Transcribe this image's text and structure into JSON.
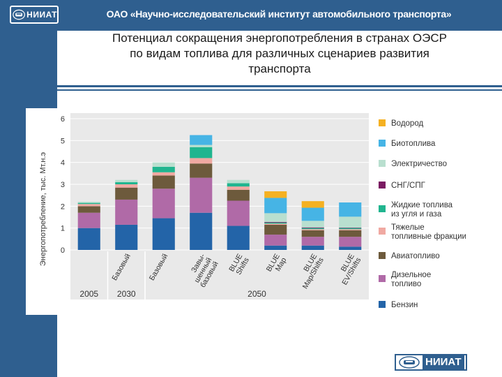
{
  "header": {
    "org_name": "ОАО «Научно-исследовательский институт автомобильного транспорта»",
    "logo_text": "НИИАТ"
  },
  "slide": {
    "title_line1": "Потенциал сокращения энергопотребления в странах ОЭСР",
    "title_line2": "по видам топлива для различных сценариев развития",
    "title_line3": "транспорта"
  },
  "footer": {
    "logo_text": "НИИАТ"
  },
  "chart_data": {
    "type": "bar",
    "stacked": true,
    "ylabel": "Энергопотребление, тыс. Мт.н.э",
    "ylim": [
      0,
      6
    ],
    "yticks": [
      0,
      1,
      2,
      3,
      4,
      5,
      6
    ],
    "grid": true,
    "legend_position": "right",
    "categories": [
      {
        "label": "",
        "group": "2005"
      },
      {
        "label": "Базовый",
        "group": "2030"
      },
      {
        "label": "Базовый",
        "group": "2050"
      },
      {
        "label": "Завы-шенный базовый",
        "group": "2050"
      },
      {
        "label": "BLUE Shifts",
        "group": "2050"
      },
      {
        "label": "BLUE Map",
        "group": "2050"
      },
      {
        "label": "BLUE Map/Shifts",
        "group": "2050"
      },
      {
        "label": "BLUE EV/Shifts",
        "group": "2050"
      }
    ],
    "groups": [
      {
        "label": "2005",
        "from": 0,
        "to": 0
      },
      {
        "label": "2030",
        "from": 1,
        "to": 1
      },
      {
        "label": "2050",
        "from": 2,
        "to": 7
      }
    ],
    "series": [
      {
        "name": "Бензин",
        "color": "#2364a8",
        "values": [
          1.0,
          1.15,
          1.45,
          1.7,
          1.1,
          0.2,
          0.2,
          0.15
        ]
      },
      {
        "name": "Дизельное топливо",
        "color": "#b06aa7",
        "values": [
          0.7,
          1.15,
          1.35,
          1.6,
          1.15,
          0.5,
          0.4,
          0.45
        ]
      },
      {
        "name": "Авиатопливо",
        "color": "#6d5a3c",
        "values": [
          0.3,
          0.55,
          0.6,
          0.65,
          0.5,
          0.45,
          0.3,
          0.3
        ]
      },
      {
        "name": "Тяжелые топливные фракции",
        "color": "#f0a9a2",
        "values": [
          0.1,
          0.15,
          0.15,
          0.25,
          0.15,
          0.05,
          0.05,
          0.05
        ]
      },
      {
        "name": "Жидкие топлива из угля и газа",
        "color": "#20b58f",
        "values": [
          0.05,
          0.1,
          0.25,
          0.5,
          0.15,
          0.05,
          0.05,
          0.05
        ]
      },
      {
        "name": "СНГ/СПГ",
        "color": "#7a1a62",
        "values": [
          0,
          0,
          0,
          0,
          0,
          0.03,
          0.03,
          0.02
        ]
      },
      {
        "name": "Электричество",
        "color": "#b9dfcf",
        "values": [
          0.05,
          0.1,
          0.2,
          0.1,
          0.15,
          0.4,
          0.3,
          0.5
        ]
      },
      {
        "name": "Биотоплива",
        "color": "#46b4e5",
        "values": [
          0,
          0,
          0,
          0.45,
          0,
          0.7,
          0.6,
          0.65
        ]
      },
      {
        "name": "Водород",
        "color": "#f5b122",
        "values": [
          0,
          0,
          0,
          0,
          0,
          0.3,
          0.3,
          0
        ]
      }
    ],
    "legend_order": [
      8,
      7,
      6,
      5,
      4,
      3,
      2,
      1,
      0
    ]
  }
}
